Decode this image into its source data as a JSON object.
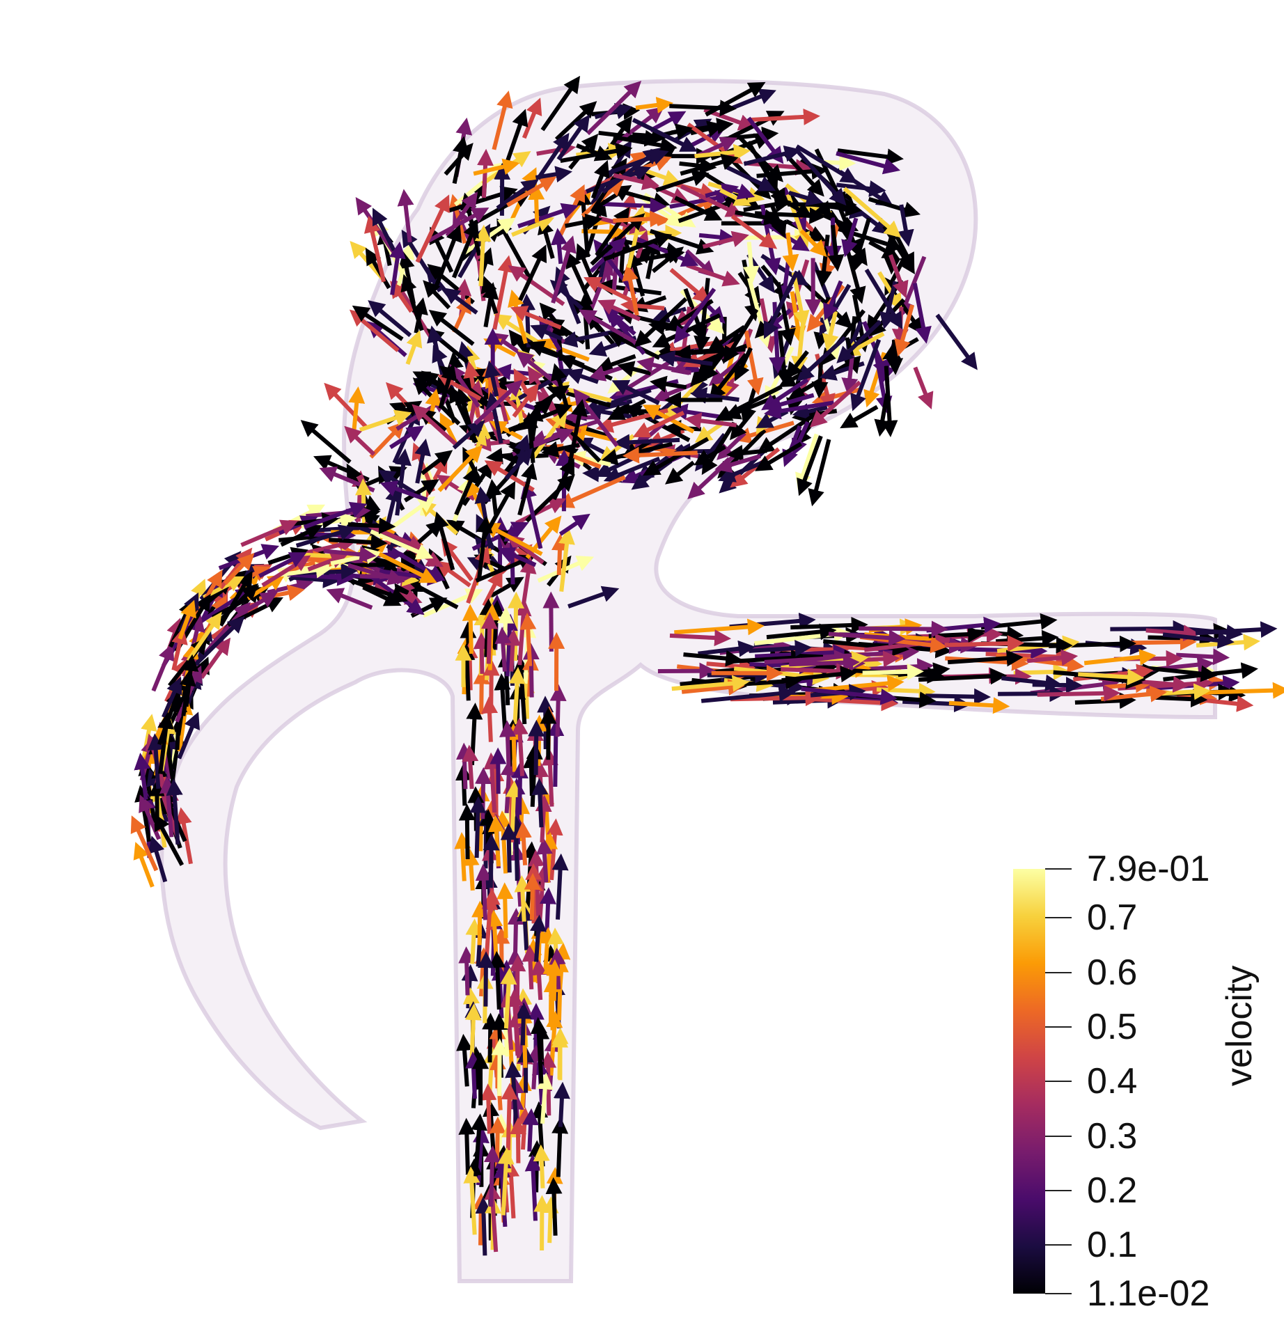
{
  "scene": {
    "description_icon": "vessel-aneurysm-velocity-glyphs",
    "background": "#ffffff",
    "vessel_surface_color": "#e7dcea"
  },
  "colorbar": {
    "title": "velocity",
    "colormap": "inferno",
    "min_label": "1.1e-02",
    "max_label": "7.9e-01",
    "min_value": 0.011,
    "max_value": 0.79,
    "ticks": [
      {
        "label": "7.9e-01",
        "value": 0.79
      },
      {
        "label": "0.7",
        "value": 0.7
      },
      {
        "label": "0.6",
        "value": 0.6
      },
      {
        "label": "0.5",
        "value": 0.5
      },
      {
        "label": "0.4",
        "value": 0.4
      },
      {
        "label": "0.3",
        "value": 0.3
      },
      {
        "label": "0.2",
        "value": 0.2
      },
      {
        "label": "0.1",
        "value": 0.1
      },
      {
        "label": "1.1e-02",
        "value": 0.011
      }
    ],
    "stops": [
      "#000004",
      "#1b0c41",
      "#4a0c6b",
      "#781c6d",
      "#a52c60",
      "#cf4446",
      "#ed6925",
      "#fb9b06",
      "#f7d13d",
      "#fcffa4"
    ]
  }
}
